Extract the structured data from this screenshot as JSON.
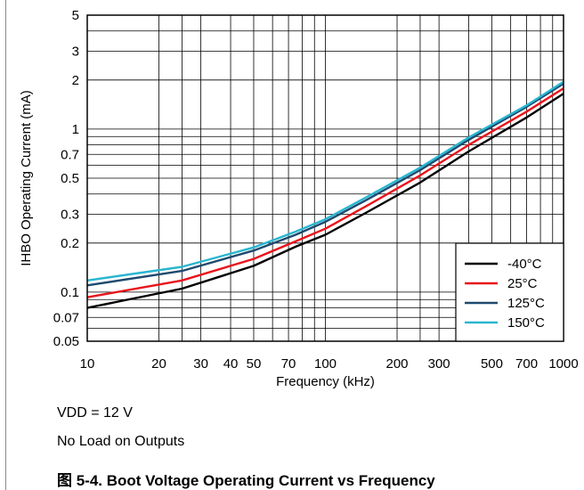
{
  "chart_data": {
    "type": "line",
    "title": "",
    "xlabel": "Frequency (kHz)",
    "ylabel": "IHBO Operating Current (mA)",
    "x_scale": "log",
    "y_scale": "log",
    "xlim": [
      10,
      1000
    ],
    "ylim": [
      0.05,
      5
    ],
    "grid": true,
    "legend_position": "bottom-right",
    "x_ticks": [
      {
        "value": 10,
        "label": "10"
      },
      {
        "value": 20,
        "label": "20"
      },
      {
        "value": 30,
        "label": "30"
      },
      {
        "value": 40,
        "label": "40"
      },
      {
        "value": 50,
        "label": "50"
      },
      {
        "value": 70,
        "label": "70"
      },
      {
        "value": 100,
        "label": "100"
      },
      {
        "value": 200,
        "label": "200"
      },
      {
        "value": 300,
        "label": "300"
      },
      {
        "value": 500,
        "label": "500"
      },
      {
        "value": 700,
        "label": "700"
      },
      {
        "value": 1000,
        "label": "1000"
      }
    ],
    "y_ticks": [
      {
        "value": 0.05,
        "label": "0.05"
      },
      {
        "value": 0.07,
        "label": "0.07"
      },
      {
        "value": 0.1,
        "label": "0.1"
      },
      {
        "value": 0.2,
        "label": "0.2"
      },
      {
        "value": 0.3,
        "label": "0.3"
      },
      {
        "value": 0.5,
        "label": "0.5"
      },
      {
        "value": 0.7,
        "label": "0.7"
      },
      {
        "value": 1,
        "label": "1"
      },
      {
        "value": 2,
        "label": "2"
      },
      {
        "value": 3,
        "label": "3"
      },
      {
        "value": 5,
        "label": "5"
      }
    ],
    "x_grid": [
      10,
      20,
      25,
      30,
      40,
      50,
      60,
      70,
      80,
      90,
      100,
      200,
      250,
      300,
      400,
      500,
      600,
      700,
      800,
      900,
      1000
    ],
    "y_grid": [
      0.05,
      0.06,
      0.07,
      0.08,
      0.09,
      0.1,
      0.2,
      0.3,
      0.4,
      0.5,
      0.6,
      0.7,
      0.8,
      0.9,
      1,
      2,
      3,
      4,
      5
    ],
    "series": [
      {
        "name": "-40°C",
        "color": "#000000",
        "x": [
          10,
          25,
          50,
          75,
          100,
          150,
          250,
          400,
          700,
          1000
        ],
        "y": [
          0.08,
          0.105,
          0.145,
          0.19,
          0.225,
          0.31,
          0.47,
          0.73,
          1.18,
          1.65
        ]
      },
      {
        "name": "25°C",
        "color": "#e8141b",
        "x": [
          10,
          25,
          50,
          75,
          100,
          150,
          250,
          400,
          700,
          1000
        ],
        "y": [
          0.093,
          0.118,
          0.16,
          0.205,
          0.245,
          0.34,
          0.52,
          0.8,
          1.28,
          1.78
        ]
      },
      {
        "name": "125°C",
        "color": "#1e4a6e",
        "x": [
          10,
          25,
          50,
          75,
          100,
          150,
          250,
          400,
          700,
          1000
        ],
        "y": [
          0.11,
          0.135,
          0.18,
          0.225,
          0.27,
          0.37,
          0.56,
          0.86,
          1.37,
          1.9
        ]
      },
      {
        "name": "150°C",
        "color": "#29b6d0",
        "x": [
          10,
          25,
          50,
          75,
          100,
          150,
          250,
          400,
          700,
          1000
        ],
        "y": [
          0.118,
          0.143,
          0.188,
          0.235,
          0.28,
          0.385,
          0.58,
          0.89,
          1.4,
          1.95
        ]
      }
    ]
  },
  "notes": {
    "vdd": "VDD = 12 V",
    "load": "No Load on Outputs"
  },
  "caption": "图 5-4. Boot Voltage Operating Current vs Frequency"
}
